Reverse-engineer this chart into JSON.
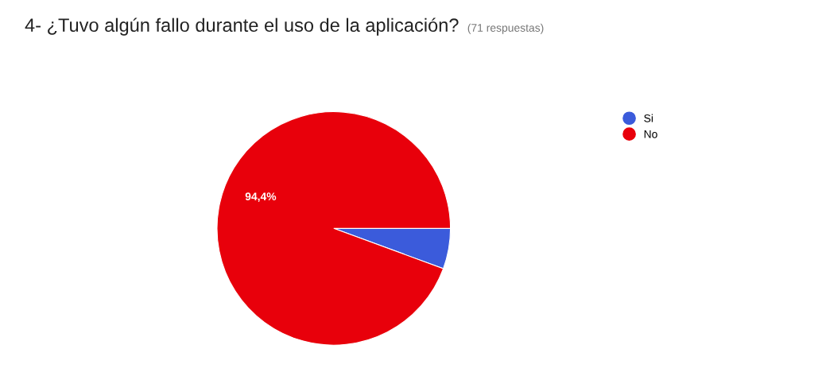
{
  "chart_data": {
    "type": "pie",
    "title": "4- ¿Tuvo algún fallo durante el uso de la aplicación?",
    "subtitle": "(71 respuestas)",
    "categories": [
      "Si",
      "No"
    ],
    "values": [
      5.6,
      94.4
    ],
    "colors": [
      "#3b5bdb",
      "#e8000b"
    ],
    "value_labels": [
      null,
      "94,4%"
    ],
    "legend": "top right"
  }
}
